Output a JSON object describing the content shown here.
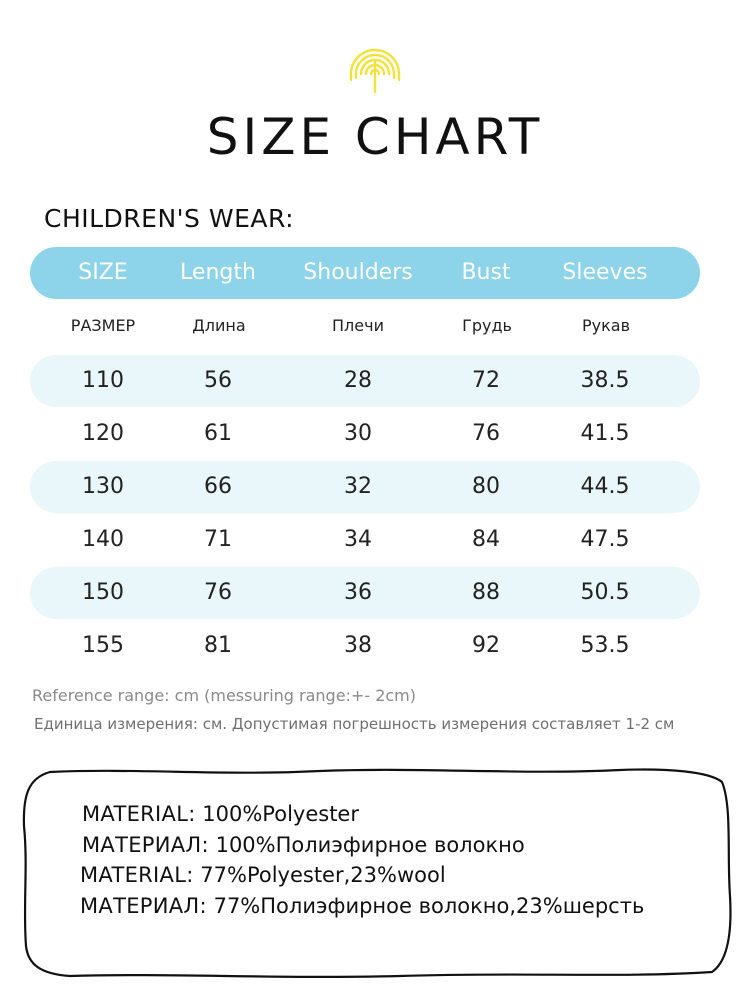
{
  "header": {
    "title": "SIZE CHART",
    "logo_icon": "rainbow-tree-icon",
    "logo_color": "#f3e23a"
  },
  "section": {
    "title": "CHILDREN'S WEAR:"
  },
  "table": {
    "accent_color": "#8dd3e9",
    "stripe_color": "#e9f6fa",
    "columns_en": [
      "SIZE",
      "Length",
      "Shoulders",
      "Bust",
      "Sleeves"
    ],
    "columns_ru": [
      "РАЗМЕР",
      "Длина",
      "Плечи",
      "Грудь",
      "Рукав"
    ],
    "rows": [
      [
        "110",
        "56",
        "28",
        "72",
        "38.5"
      ],
      [
        "120",
        "61",
        "30",
        "76",
        "41.5"
      ],
      [
        "130",
        "66",
        "32",
        "80",
        "44.5"
      ],
      [
        "140",
        "71",
        "34",
        "84",
        "47.5"
      ],
      [
        "150",
        "76",
        "36",
        "88",
        "50.5"
      ],
      [
        "155",
        "81",
        "38",
        "92",
        "53.5"
      ]
    ]
  },
  "notes": {
    "reference_en": "Reference range: cm (messuring range:+- 2cm)",
    "reference_ru": "Единица измерения: см. Допустимая погрешность измерения составляет 1-2 см"
  },
  "materials": [
    {
      "label": "MATERIAL:",
      "value": "100%Polyester"
    },
    {
      "label": "МАТЕРИАЛ:",
      "value": "100%Полиэфирное волокно"
    },
    {
      "label": "MATERIAL:",
      "value": "77%Polyester,23%wool"
    },
    {
      "label": "МАТЕРИАЛ:",
      "value": "77%Полиэфирное волокно,23%шерсть"
    }
  ]
}
